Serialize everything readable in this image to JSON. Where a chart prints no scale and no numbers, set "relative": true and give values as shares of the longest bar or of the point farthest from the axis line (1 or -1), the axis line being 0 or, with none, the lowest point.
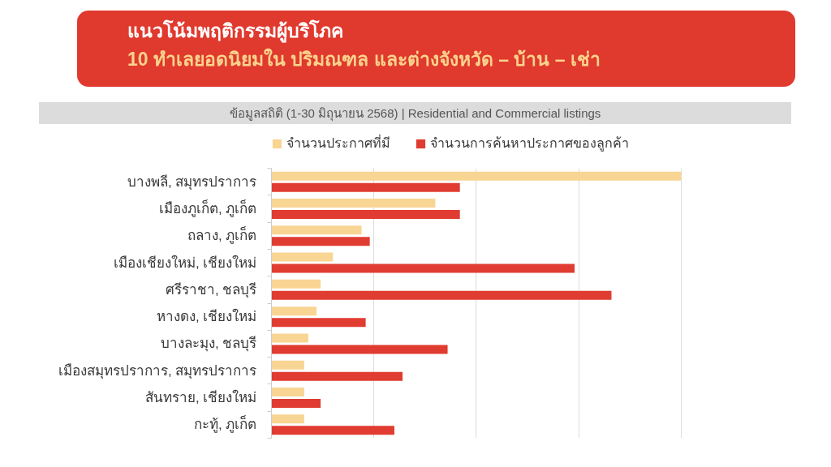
{
  "chart_data": {
    "type": "bar",
    "orientation": "horizontal",
    "relative": true,
    "title": "แนวโน้มพฤติกรรมผู้บริโภค",
    "subtitle": "10 ทำเลยอดนิยมใน ปริมณฑล และต่างจังหวัด – บ้าน – เช่า",
    "annotations": [
      "ข้อมูลสถิติ (1-30 มิถุนายน 2568) | Residential and Commercial listings"
    ],
    "categories": [
      "บางพลี, สมุทรปราการ",
      "เมืองภูเก็ต, ภูเก็ต",
      "ถลาง, ภูเก็ต",
      "เมืองเชียงใหม่, เชียงใหม่",
      "ศรีราชา, ชลบุรี",
      "หางดง, เชียงใหม่",
      "บางละมุง, ชลบุรี",
      "เมืองสมุทรปราการ, สมุทรปราการ",
      "สันทราย, เชียงใหม่",
      "กะทู้, ภูเก็ต"
    ],
    "series": [
      {
        "name": "จำนวนประกาศที่มี",
        "color": "#f9d593",
        "values": [
          1,
          0.4,
          0.22,
          0.15,
          0.12,
          0.11,
          0.09,
          0.08,
          0.08,
          0.08
        ]
      },
      {
        "name": "จำนวนการค้นหาประกาศของลูกค้า",
        "color": "#e03c31",
        "values": [
          0.46,
          0.46,
          0.24,
          0.74,
          0.83,
          0.23,
          0.43,
          0.32,
          0.12,
          0.3
        ]
      }
    ],
    "grid": "x",
    "legend": "top"
  }
}
